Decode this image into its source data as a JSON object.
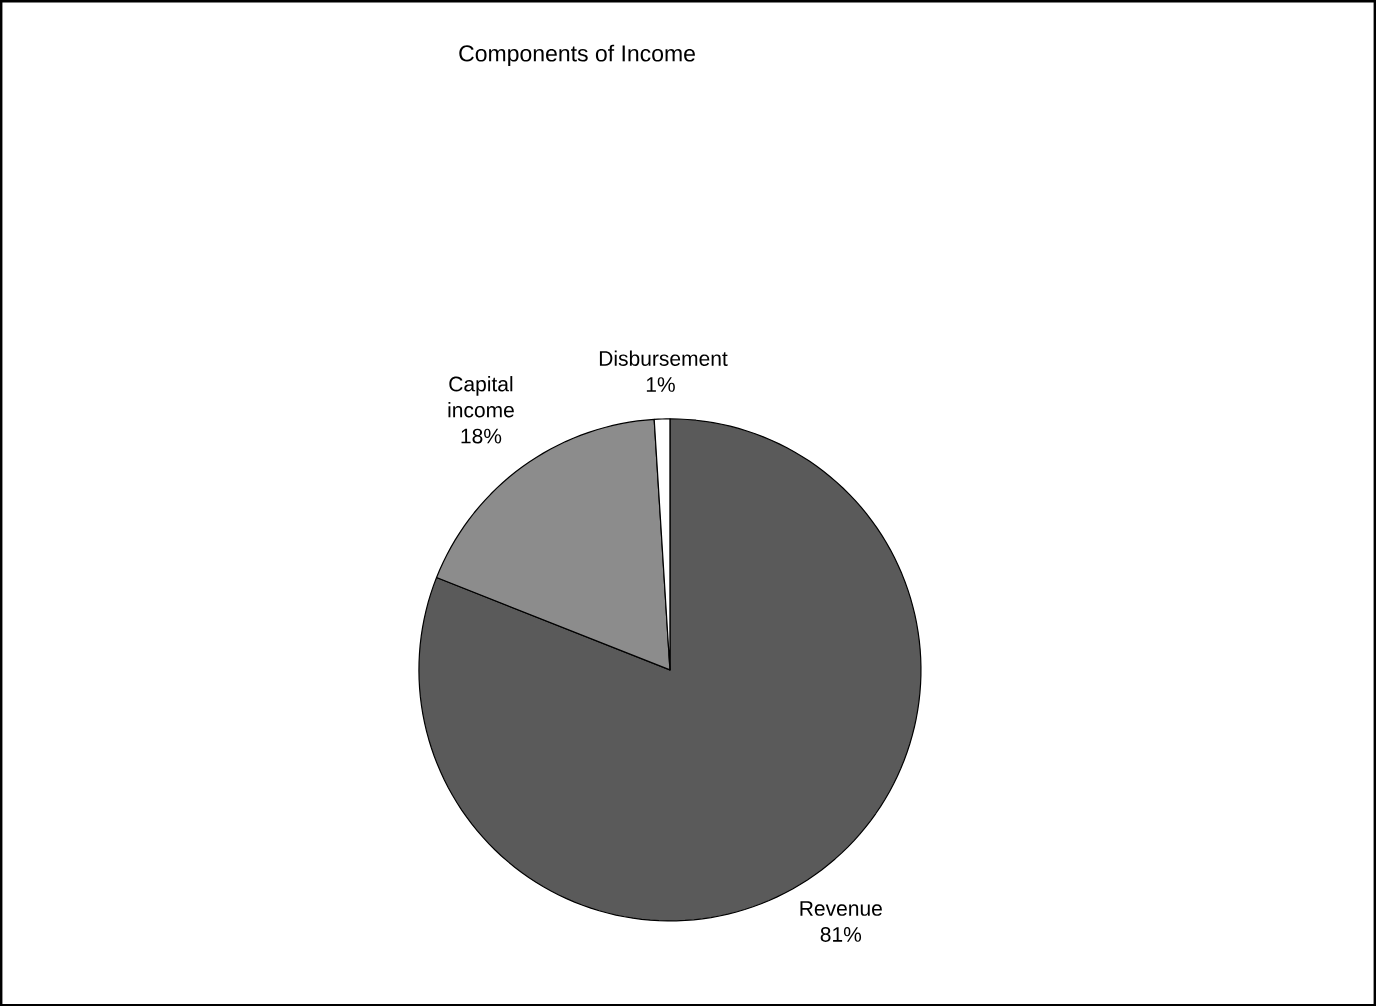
{
  "chart_data": {
    "type": "pie",
    "title": "Components of Income",
    "categories": [
      "Revenue",
      "Capital income",
      "Disbursement"
    ],
    "values": [
      81,
      18,
      1
    ],
    "value_labels": [
      "81%",
      "18%",
      "1%"
    ],
    "colors": [
      "#5a5a5a",
      "#8c8c8c",
      "#ffffff"
    ]
  }
}
